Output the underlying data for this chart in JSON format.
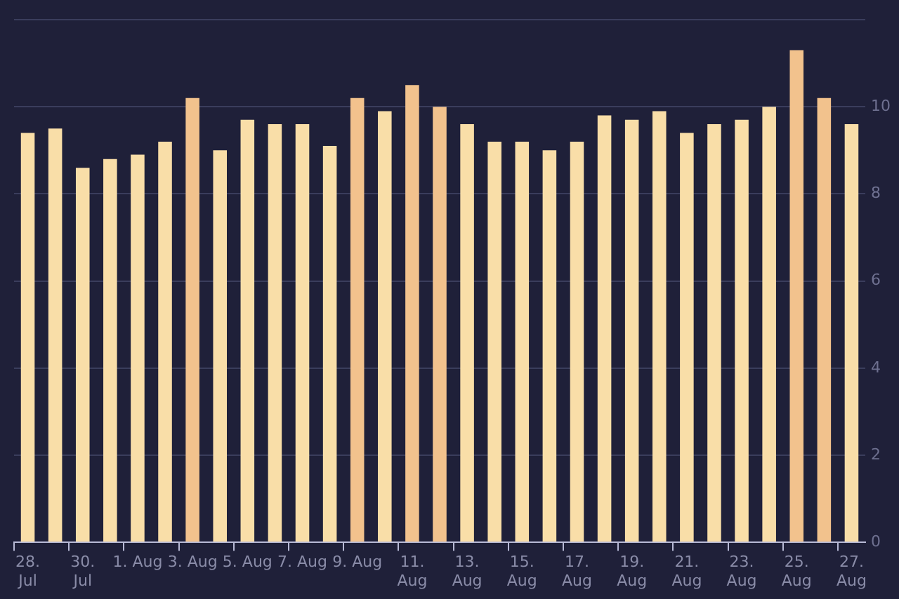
{
  "chart_data": {
    "type": "bar",
    "categories": [
      "28. Jul",
      null,
      "30. Jul",
      null,
      "1. Aug",
      null,
      "3. Aug",
      null,
      "5. Aug",
      null,
      "7. Aug",
      null,
      "9. Aug",
      null,
      "11. Aug",
      null,
      "13. Aug",
      null,
      "15. Aug",
      null,
      "17. Aug",
      null,
      "19. Aug",
      null,
      "21. Aug",
      null,
      "23. Aug",
      null,
      "25. Aug",
      null,
      "27. Aug"
    ],
    "values": [
      9.4,
      9.5,
      8.6,
      8.8,
      8.9,
      9.2,
      10.2,
      9.0,
      9.7,
      9.6,
      9.6,
      9.1,
      10.2,
      9.9,
      10.5,
      10.0,
      9.6,
      9.2,
      9.2,
      9.0,
      9.2,
      9.8,
      9.7,
      9.9,
      9.4,
      9.6,
      9.7,
      10.0,
      11.3,
      10.2,
      9.6
    ],
    "colors": [
      "#f9dea8",
      "#f9dea8",
      "#f9dea8",
      "#f9dea8",
      "#f9dea8",
      "#f9dea8",
      "#f2c28d",
      "#f9dea8",
      "#f9dea8",
      "#f9dea8",
      "#f9dea8",
      "#f9dea8",
      "#f2c28d",
      "#f9dea8",
      "#f2c28d",
      "#f2c28d",
      "#f9dea8",
      "#f9dea8",
      "#f9dea8",
      "#f9dea8",
      "#f9dea8",
      "#f9dea8",
      "#f9dea8",
      "#f9dea8",
      "#f9dea8",
      "#f9dea8",
      "#f9dea8",
      "#f9dea8",
      "#f2c28d",
      "#f2c28d",
      "#f9dea8"
    ],
    "ylim": [
      0,
      12
    ],
    "yticks": [
      0,
      2,
      4,
      6,
      8,
      10,
      {
        "value": 12,
        "label": null
      }
    ],
    "grid": "y",
    "legend": false
  }
}
